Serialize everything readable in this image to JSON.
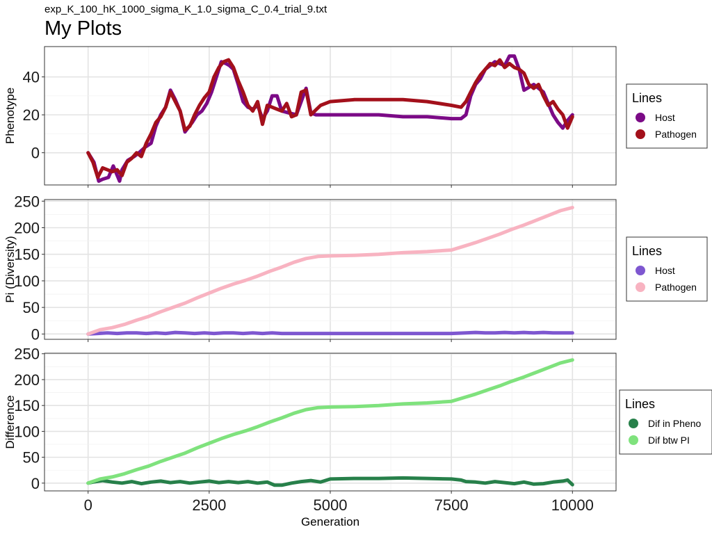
{
  "page": {
    "subtitle": "exp_K_100_hK_1000_sigma_K_1.0_sigma_C_0.4_trial_9.txt",
    "title": "My Plots"
  },
  "chart_data": [
    {
      "type": "line",
      "title": "",
      "xlabel": "",
      "ylabel": "Phenotype",
      "xlim": [
        -900,
        10900
      ],
      "ylim": [
        -17,
        56
      ],
      "xticks": [
        0,
        2500,
        5000,
        7500,
        10000
      ],
      "yticks": [
        0,
        20,
        40
      ],
      "ytick_labels": [
        "0",
        "20",
        "40"
      ],
      "show_x_tick_labels": false,
      "grid": true,
      "legend": {
        "title": "Lines",
        "position": "right"
      },
      "series": [
        {
          "name": "Host",
          "color": "#7b0a86",
          "x": [
            0,
            120,
            220,
            300,
            420,
            520,
            650,
            700,
            820,
            950,
            1050,
            1180,
            1300,
            1400,
            1500,
            1600,
            1700,
            1800,
            1900,
            2000,
            2150,
            2250,
            2350,
            2450,
            2550,
            2650,
            2750,
            2850,
            2920,
            3000,
            3100,
            3200,
            3300,
            3400,
            3500,
            3600,
            3700,
            3800,
            3900,
            4000,
            4150,
            4300,
            4500,
            4600,
            4700,
            5000,
            5500,
            6000,
            6500,
            7000,
            7500,
            7700,
            7800,
            7900,
            8000,
            8100,
            8200,
            8300,
            8400,
            8500,
            8600,
            8700,
            8800,
            8900,
            9000,
            9200,
            9400,
            9600,
            9700,
            9800,
            9900,
            10000
          ],
          "y": [
            0,
            -5,
            -15,
            -14,
            -13,
            -7,
            -15,
            -9,
            -4,
            -2,
            0,
            3,
            5,
            14,
            20,
            24,
            33,
            28,
            22,
            11,
            16,
            20,
            22,
            26,
            32,
            40,
            48,
            47,
            46,
            44,
            36,
            27,
            24,
            23,
            25,
            18,
            22,
            30,
            30,
            22,
            21,
            20,
            34,
            21,
            20,
            20,
            20,
            20,
            19,
            19,
            18,
            18,
            20,
            30,
            36,
            39,
            44,
            46,
            48,
            47,
            46,
            51,
            51,
            44,
            33,
            36,
            32,
            20,
            16,
            13,
            17,
            20
          ]
        },
        {
          "name": "Pathogen",
          "color": "#a3101b",
          "x": [
            0,
            100,
            200,
            300,
            400,
            500,
            600,
            700,
            800,
            900,
            1000,
            1100,
            1200,
            1300,
            1400,
            1500,
            1600,
            1700,
            1800,
            1900,
            2000,
            2100,
            2200,
            2300,
            2400,
            2500,
            2600,
            2700,
            2800,
            2900,
            3000,
            3100,
            3200,
            3300,
            3400,
            3500,
            3600,
            3700,
            3800,
            3900,
            4000,
            4100,
            4200,
            4300,
            4400,
            4500,
            4600,
            4800,
            5000,
            5500,
            6000,
            6500,
            7000,
            7500,
            7700,
            7800,
            7900,
            8000,
            8100,
            8200,
            8300,
            8400,
            8500,
            8600,
            8700,
            8800,
            8900,
            9000,
            9100,
            9200,
            9300,
            9400,
            9500,
            9600,
            9700,
            9800,
            9900,
            10000
          ],
          "y": [
            0,
            -5,
            -13,
            -8,
            -9,
            -10,
            -9,
            -12,
            -5,
            -3,
            0,
            -2,
            5,
            10,
            16,
            19,
            24,
            32,
            27,
            22,
            12,
            14,
            20,
            25,
            29,
            32,
            40,
            45,
            48,
            49,
            45,
            38,
            32,
            25,
            22,
            27,
            15,
            25,
            24,
            23,
            22,
            26,
            19,
            20,
            32,
            33,
            20,
            25,
            27,
            28,
            28,
            28,
            27,
            25,
            24,
            27,
            32,
            37,
            41,
            44,
            47,
            46,
            49,
            45,
            47,
            45,
            44,
            42,
            36,
            34,
            36,
            30,
            25,
            27,
            23,
            20,
            13,
            19
          ]
        }
      ]
    },
    {
      "type": "line",
      "title": "",
      "xlabel": "",
      "ylabel": "Pi (Diversity)",
      "xlim": [
        -900,
        10900
      ],
      "ylim": [
        -10,
        253
      ],
      "xticks": [
        0,
        2500,
        5000,
        7500,
        10000
      ],
      "yticks": [
        0,
        50,
        100,
        150,
        200,
        250
      ],
      "ytick_labels": [
        "0",
        "50",
        "100",
        "150",
        "200",
        "250"
      ],
      "show_x_tick_labels": false,
      "grid": true,
      "legend": {
        "title": "Lines",
        "position": "right"
      },
      "series": [
        {
          "name": "Host",
          "color": "#7e57d0",
          "x": [
            0,
            200,
            400,
            600,
            800,
            1000,
            1200,
            1400,
            1600,
            1800,
            2000,
            2200,
            2400,
            2600,
            2800,
            3000,
            3200,
            3400,
            3600,
            3800,
            4000,
            4500,
            5000,
            5500,
            6000,
            6500,
            7000,
            7500,
            7800,
            8000,
            8200,
            8400,
            8600,
            8800,
            9000,
            9200,
            9400,
            9600,
            9800,
            10000
          ],
          "y": [
            0,
            1,
            2,
            1,
            2,
            2,
            1,
            2,
            1,
            3,
            2,
            1,
            2,
            1,
            2,
            2,
            1,
            2,
            1,
            2,
            1,
            1,
            1,
            1,
            1,
            1,
            1,
            1,
            2,
            3,
            2,
            2,
            3,
            2,
            3,
            2,
            3,
            2,
            2,
            2
          ]
        },
        {
          "name": "Pathogen",
          "color": "#f8b3c1",
          "x": [
            0,
            250,
            500,
            750,
            1000,
            1250,
            1500,
            1750,
            2000,
            2250,
            2500,
            2750,
            3000,
            3250,
            3500,
            3750,
            4000,
            4250,
            4500,
            4750,
            5000,
            5500,
            6000,
            6500,
            7000,
            7500,
            7750,
            8000,
            8250,
            8500,
            8750,
            9000,
            9250,
            9500,
            9750,
            10000
          ],
          "y": [
            0,
            8,
            12,
            18,
            26,
            33,
            42,
            50,
            58,
            68,
            77,
            86,
            94,
            101,
            109,
            118,
            126,
            135,
            142,
            146,
            147,
            148,
            150,
            153,
            155,
            158,
            165,
            172,
            180,
            188,
            197,
            205,
            214,
            223,
            232,
            238
          ]
        }
      ]
    },
    {
      "type": "line",
      "title": "",
      "xlabel": "Generation",
      "ylabel": "Difference",
      "xlim": [
        -900,
        10900
      ],
      "ylim": [
        -15,
        251
      ],
      "xticks": [
        0,
        2500,
        5000,
        7500,
        10000
      ],
      "xtick_labels": [
        "0",
        "2500",
        "5000",
        "7500",
        "10000"
      ],
      "yticks": [
        0,
        50,
        100,
        150,
        200,
        250
      ],
      "ytick_labels": [
        "0",
        "50",
        "100",
        "150",
        "200",
        "250"
      ],
      "show_x_tick_labels": true,
      "grid": true,
      "legend": {
        "title": "Lines",
        "position": "right"
      },
      "series": [
        {
          "name": "Dif in Pheno",
          "color": "#27804a",
          "x": [
            0,
            100,
            300,
            500,
            700,
            900,
            1100,
            1300,
            1500,
            1700,
            1900,
            2100,
            2300,
            2500,
            2700,
            2900,
            3100,
            3300,
            3500,
            3700,
            3850,
            4000,
            4200,
            4400,
            4600,
            4800,
            5000,
            5500,
            6000,
            6500,
            7000,
            7500,
            7700,
            7800,
            8000,
            8200,
            8400,
            8600,
            8800,
            9000,
            9200,
            9400,
            9600,
            9800,
            9900,
            10000
          ],
          "y": [
            0,
            2,
            5,
            2,
            0,
            3,
            -1,
            2,
            4,
            1,
            3,
            0,
            2,
            4,
            1,
            3,
            1,
            3,
            0,
            2,
            -4,
            -4,
            0,
            3,
            5,
            2,
            8,
            9,
            9,
            10,
            9,
            8,
            6,
            3,
            2,
            0,
            3,
            1,
            -1,
            2,
            -2,
            -1,
            2,
            4,
            6,
            -3
          ]
        },
        {
          "name": "Dif btw PI",
          "color": "#7fe27d",
          "x": [
            0,
            250,
            500,
            750,
            1000,
            1250,
            1500,
            1750,
            2000,
            2250,
            2500,
            2750,
            3000,
            3250,
            3500,
            3750,
            4000,
            4250,
            4500,
            4750,
            5000,
            5500,
            6000,
            6500,
            7000,
            7500,
            7750,
            8000,
            8250,
            8500,
            8750,
            9000,
            9250,
            9500,
            9750,
            10000
          ],
          "y": [
            0,
            8,
            12,
            18,
            26,
            33,
            42,
            50,
            58,
            68,
            77,
            86,
            94,
            101,
            109,
            118,
            126,
            135,
            142,
            146,
            147,
            148,
            150,
            153,
            155,
            158,
            165,
            172,
            180,
            188,
            197,
            205,
            214,
            223,
            232,
            238
          ]
        }
      ]
    }
  ]
}
